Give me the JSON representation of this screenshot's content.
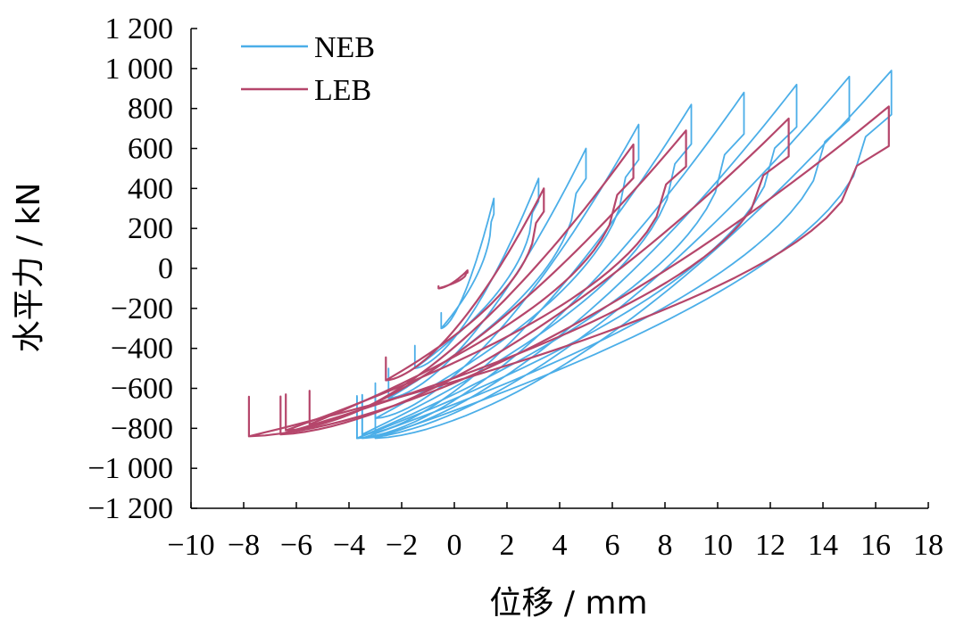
{
  "chart_data": {
    "type": "line",
    "title": "",
    "xlabel": "位移 / mm",
    "ylabel": "水平力 / kN",
    "xlim": [
      -10,
      18
    ],
    "ylim": [
      -1200,
      1200
    ],
    "x_ticks": [
      -10,
      -8,
      -6,
      -4,
      -2,
      0,
      2,
      4,
      6,
      8,
      10,
      12,
      14,
      16,
      18
    ],
    "x_tick_labels": [
      "−10",
      "−8",
      "−6",
      "−4",
      "−2",
      "0",
      "2",
      "4",
      "6",
      "8",
      "10",
      "12",
      "14",
      "16",
      "18"
    ],
    "y_ticks": [
      1200,
      1000,
      800,
      600,
      400,
      200,
      0,
      -200,
      -400,
      -600,
      -800,
      -1000,
      -1200
    ],
    "y_tick_labels": [
      "1 200",
      "1 000",
      "800",
      "600",
      "400",
      "200",
      "0",
      "−200",
      "−400",
      "−600",
      "−800",
      "−1 000",
      "−1 200"
    ],
    "legend": {
      "position": "top-left"
    },
    "grid": false,
    "series": [
      {
        "name": "NEB",
        "color": "#4baee8",
        "loops": [
          {
            "x_min": -0.5,
            "x_max": 1.5,
            "f_min": -300,
            "f_max": 350
          },
          {
            "x_min": -1.5,
            "x_max": 3.2,
            "f_min": -500,
            "f_max": 450
          },
          {
            "x_min": -2.5,
            "x_max": 5.0,
            "f_min": -650,
            "f_max": 600
          },
          {
            "x_min": -3.0,
            "x_max": 7.0,
            "f_min": -750,
            "f_max": 720
          },
          {
            "x_min": -3.5,
            "x_max": 9.0,
            "f_min": -830,
            "f_max": 820
          },
          {
            "x_min": -3.7,
            "x_max": 11.0,
            "f_min": -850,
            "f_max": 880
          },
          {
            "x_min": -3.7,
            "x_max": 13.0,
            "f_min": -850,
            "f_max": 920
          },
          {
            "x_min": -3.5,
            "x_max": 15.0,
            "f_min": -850,
            "f_max": 960
          },
          {
            "x_min": -3.0,
            "x_max": 16.6,
            "f_min": -850,
            "f_max": 990
          }
        ]
      },
      {
        "name": "LEB",
        "color": "#b5466b",
        "loops": [
          {
            "x_min": -0.6,
            "x_max": 0.5,
            "f_min": -100,
            "f_max": -10
          },
          {
            "x_min": -2.6,
            "x_max": 3.4,
            "f_min": -560,
            "f_max": 400
          },
          {
            "x_min": -5.5,
            "x_max": 6.8,
            "f_min": -780,
            "f_max": 620
          },
          {
            "x_min": -6.4,
            "x_max": 8.8,
            "f_min": -810,
            "f_max": 690
          },
          {
            "x_min": -6.6,
            "x_max": 12.7,
            "f_min": -830,
            "f_max": 750
          },
          {
            "x_min": -7.8,
            "x_max": 16.5,
            "f_min": -840,
            "f_max": 810
          }
        ]
      }
    ]
  }
}
